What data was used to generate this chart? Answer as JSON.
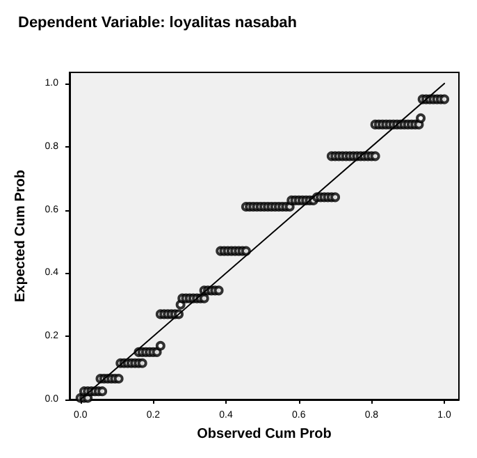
{
  "chart_data": {
    "type": "scatter",
    "title": "Dependent Variable: loyalitas nasabah",
    "xlabel": "Observed Cum Prob",
    "ylabel": "Expected Cum Prob",
    "xlim": [
      -0.03,
      1.04
    ],
    "ylim": [
      0,
      1.035
    ],
    "xticks": [
      {
        "value": 0,
        "label": "0.0"
      },
      {
        "value": 0.2,
        "label": "0.2"
      },
      {
        "value": 0.4,
        "label": "0.4"
      },
      {
        "value": 0.6,
        "label": "0.6"
      },
      {
        "value": 0.8,
        "label": "0.8"
      },
      {
        "value": 1,
        "label": "1.0"
      }
    ],
    "yticks": [
      {
        "value": 0,
        "label": "0.0"
      },
      {
        "value": 0.2,
        "label": "0.2"
      },
      {
        "value": 0.4,
        "label": "0.4"
      },
      {
        "value": 0.6,
        "label": "0.6"
      },
      {
        "value": 0.8,
        "label": "0.8"
      },
      {
        "value": 1,
        "label": "1.0"
      }
    ],
    "grid": false,
    "marker": "circle",
    "series": [
      {
        "color": "#000000",
        "x": [
          0,
          0.01,
          0.02,
          0.01,
          0.02,
          0.03,
          0.04,
          0.05,
          0.06,
          0.055,
          0.065,
          0.075,
          0.085,
          0.095,
          0.105,
          0.11,
          0.12,
          0.13,
          0.14,
          0.15,
          0.16,
          0.17,
          0.16,
          0.17,
          0.18,
          0.19,
          0.2,
          0.21,
          0.22,
          0.22,
          0.23,
          0.24,
          0.25,
          0.26,
          0.27,
          0.275,
          0.28,
          0.29,
          0.3,
          0.31,
          0.32,
          0.33,
          0.34,
          0.34,
          0.35,
          0.36,
          0.37,
          0.38,
          0.385,
          0.395,
          0.405,
          0.415,
          0.425,
          0.435,
          0.445,
          0.455,
          0.455,
          0.465,
          0.475,
          0.485,
          0.495,
          0.505,
          0.515,
          0.525,
          0.535,
          0.545,
          0.555,
          0.565,
          0.575,
          0.58,
          0.59,
          0.6,
          0.61,
          0.62,
          0.63,
          0.64,
          0.65,
          0.66,
          0.67,
          0.68,
          0.69,
          0.7,
          0.69,
          0.7,
          0.71,
          0.72,
          0.73,
          0.74,
          0.75,
          0.76,
          0.77,
          0.78,
          0.79,
          0.8,
          0.81,
          0.81,
          0.82,
          0.83,
          0.84,
          0.85,
          0.86,
          0.87,
          0.88,
          0.89,
          0.9,
          0.91,
          0.92,
          0.93,
          0.935,
          0.94,
          0.95,
          0.96,
          0.97,
          0.98,
          0.99,
          1.0
        ],
        "values": [
          0.005,
          0.005,
          0.005,
          0.026,
          0.026,
          0.026,
          0.026,
          0.026,
          0.026,
          0.066,
          0.066,
          0.066,
          0.066,
          0.066,
          0.066,
          0.115,
          0.115,
          0.115,
          0.115,
          0.115,
          0.115,
          0.115,
          0.15,
          0.15,
          0.15,
          0.15,
          0.15,
          0.15,
          0.17,
          0.27,
          0.27,
          0.27,
          0.27,
          0.27,
          0.27,
          0.3,
          0.32,
          0.32,
          0.32,
          0.32,
          0.32,
          0.32,
          0.32,
          0.345,
          0.345,
          0.345,
          0.345,
          0.345,
          0.47,
          0.47,
          0.47,
          0.47,
          0.47,
          0.47,
          0.47,
          0.47,
          0.61,
          0.61,
          0.61,
          0.61,
          0.61,
          0.61,
          0.61,
          0.61,
          0.61,
          0.61,
          0.61,
          0.61,
          0.61,
          0.63,
          0.63,
          0.63,
          0.63,
          0.63,
          0.63,
          0.63,
          0.64,
          0.64,
          0.64,
          0.64,
          0.64,
          0.64,
          0.77,
          0.77,
          0.77,
          0.77,
          0.77,
          0.77,
          0.77,
          0.77,
          0.77,
          0.77,
          0.77,
          0.77,
          0.77,
          0.87,
          0.87,
          0.87,
          0.87,
          0.87,
          0.87,
          0.87,
          0.87,
          0.87,
          0.87,
          0.87,
          0.87,
          0.87,
          0.89,
          0.95,
          0.95,
          0.95,
          0.95,
          0.95,
          0.95,
          0.95
        ]
      },
      {
        "type": "line",
        "color": "#000000",
        "marker": "none",
        "x": [
          0,
          1
        ],
        "values": [
          0,
          1
        ]
      }
    ]
  }
}
